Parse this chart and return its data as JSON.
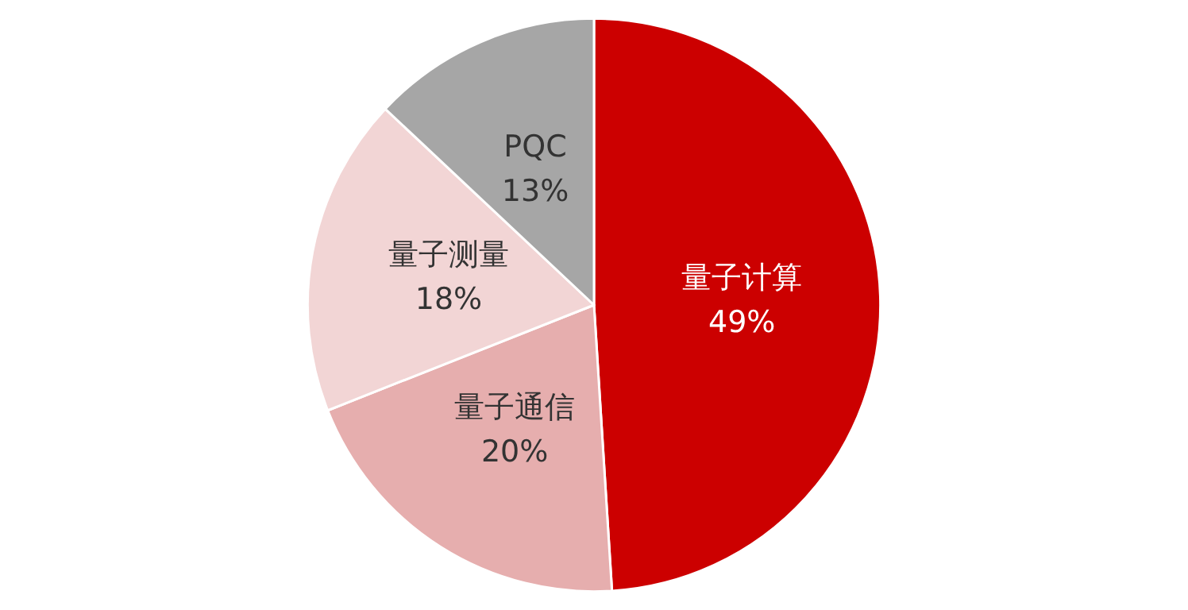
{
  "chart_data": {
    "type": "pie",
    "categories": [
      "量子计算",
      "量子通信",
      "量子测量",
      "PQC"
    ],
    "values": [
      49,
      20,
      18,
      13
    ],
    "value_labels": [
      "49%",
      "20%",
      "18%",
      "13%"
    ],
    "colors": [
      "#cc0000",
      "#e6aeae",
      "#f2d5d5",
      "#a6a6a6"
    ],
    "legend": false
  }
}
